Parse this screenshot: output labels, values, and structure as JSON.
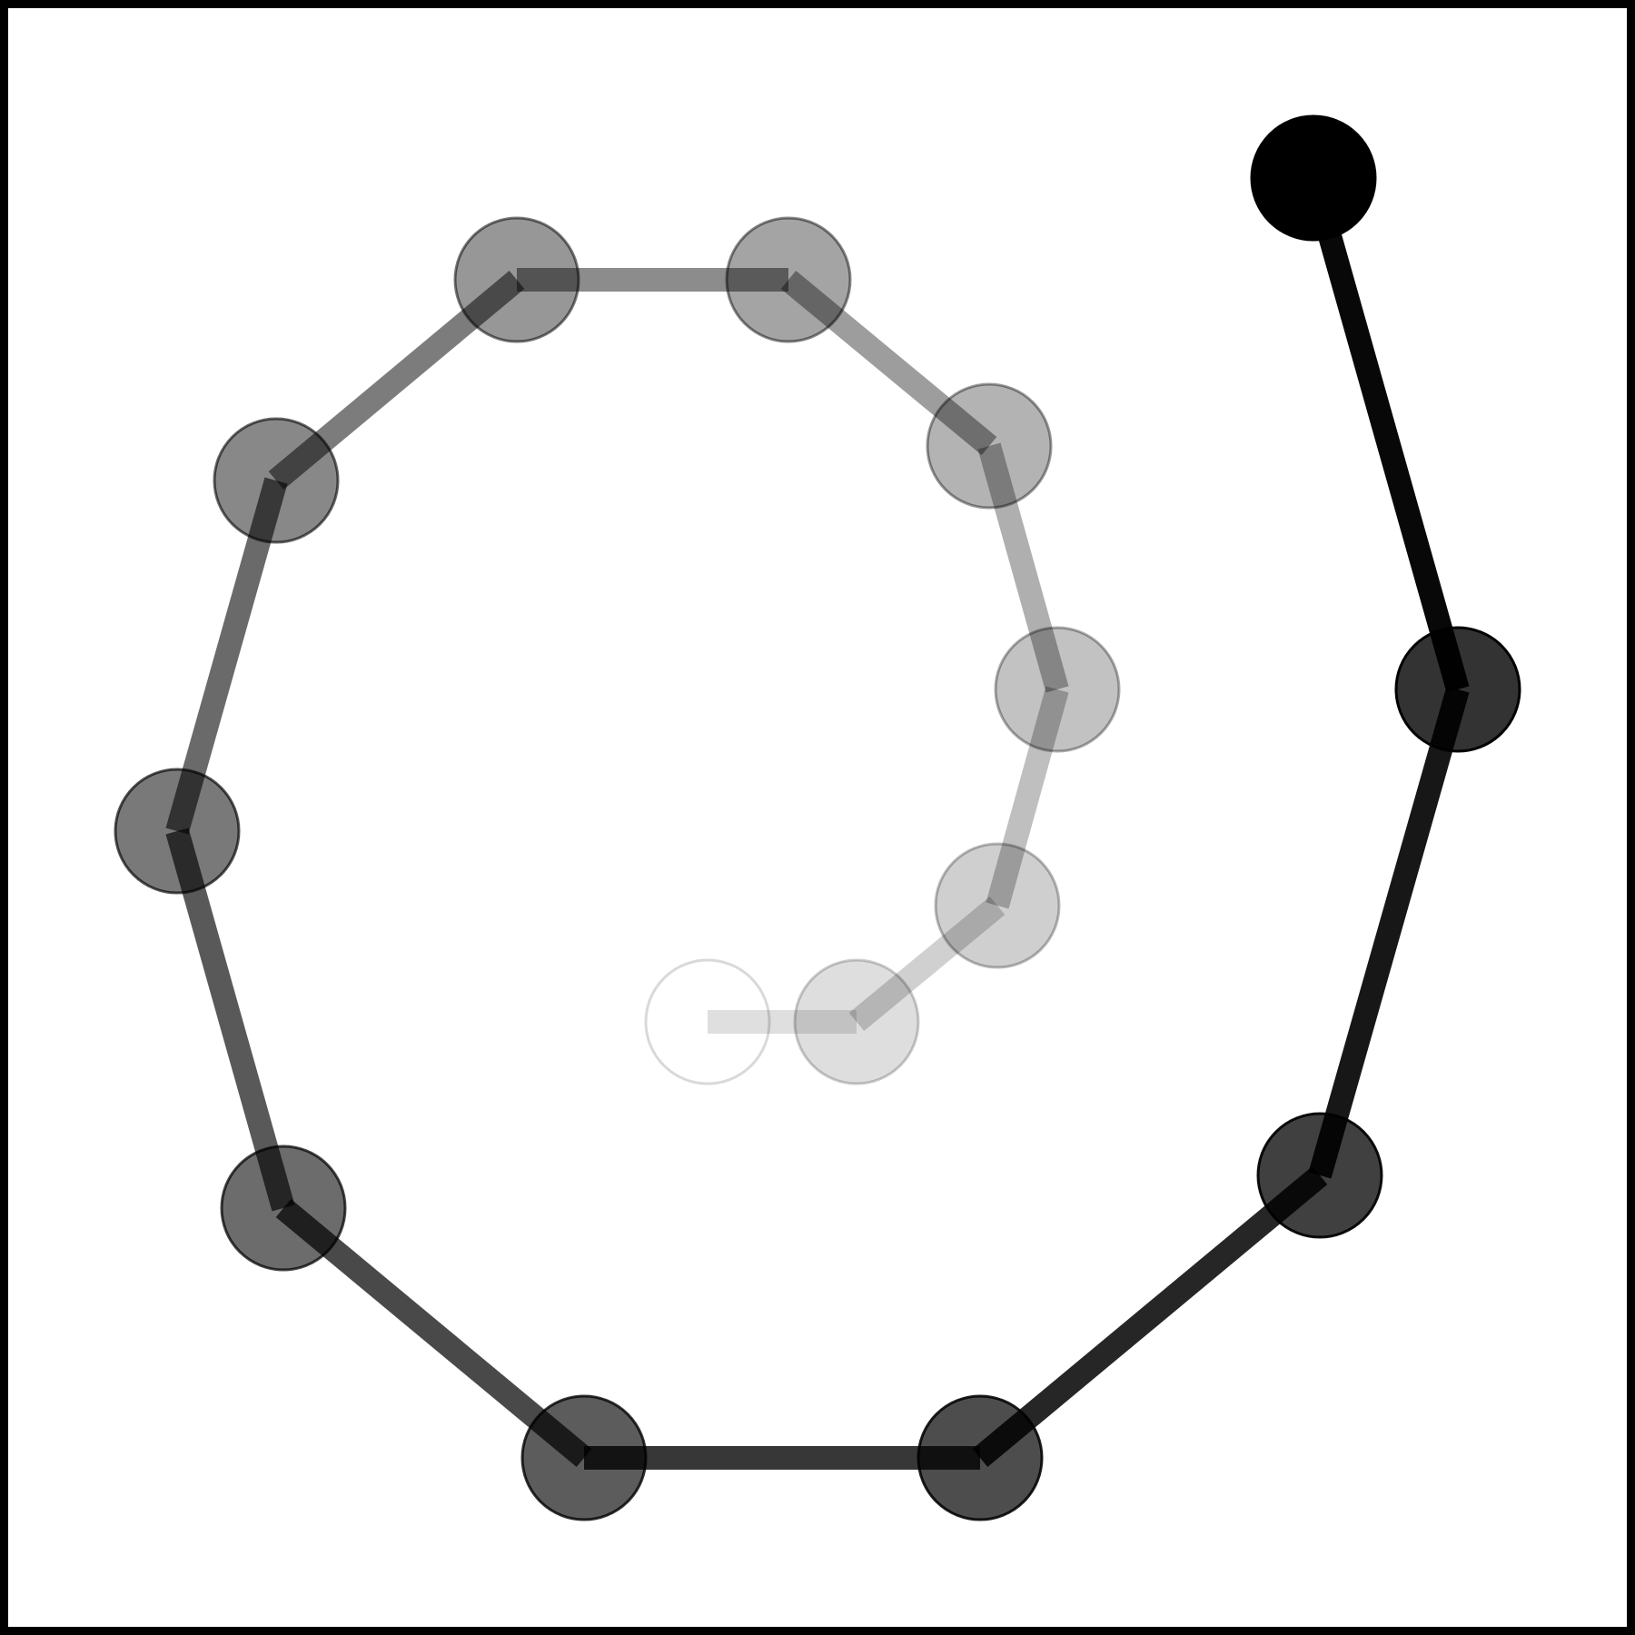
{
  "diagram": {
    "type": "spiral-path",
    "stroke_color": "#000000",
    "fill_color": "#000000",
    "background": "#ffffff",
    "frame_color": "#000000",
    "nodes": [
      {
        "id": "node-1",
        "opacity": 0.1,
        "filled": false
      },
      {
        "id": "node-2",
        "opacity": 0.16,
        "filled": true
      },
      {
        "id": "node-3",
        "opacity": 0.23,
        "filled": true
      },
      {
        "id": "node-4",
        "opacity": 0.3,
        "filled": true
      },
      {
        "id": "node-5",
        "opacity": 0.36,
        "filled": true
      },
      {
        "id": "node-6",
        "opacity": 0.43,
        "filled": true
      },
      {
        "id": "node-7",
        "opacity": 0.5,
        "filled": true
      },
      {
        "id": "node-8",
        "opacity": 0.57,
        "filled": true
      },
      {
        "id": "node-9",
        "opacity": 0.64,
        "filled": true
      },
      {
        "id": "node-10",
        "opacity": 0.71,
        "filled": true
      },
      {
        "id": "node-11",
        "opacity": 0.78,
        "filled": true
      },
      {
        "id": "node-12",
        "opacity": 0.85,
        "filled": true
      },
      {
        "id": "node-13",
        "opacity": 0.92,
        "filled": true
      },
      {
        "id": "node-14",
        "opacity": 1.0,
        "filled": true
      }
    ]
  }
}
